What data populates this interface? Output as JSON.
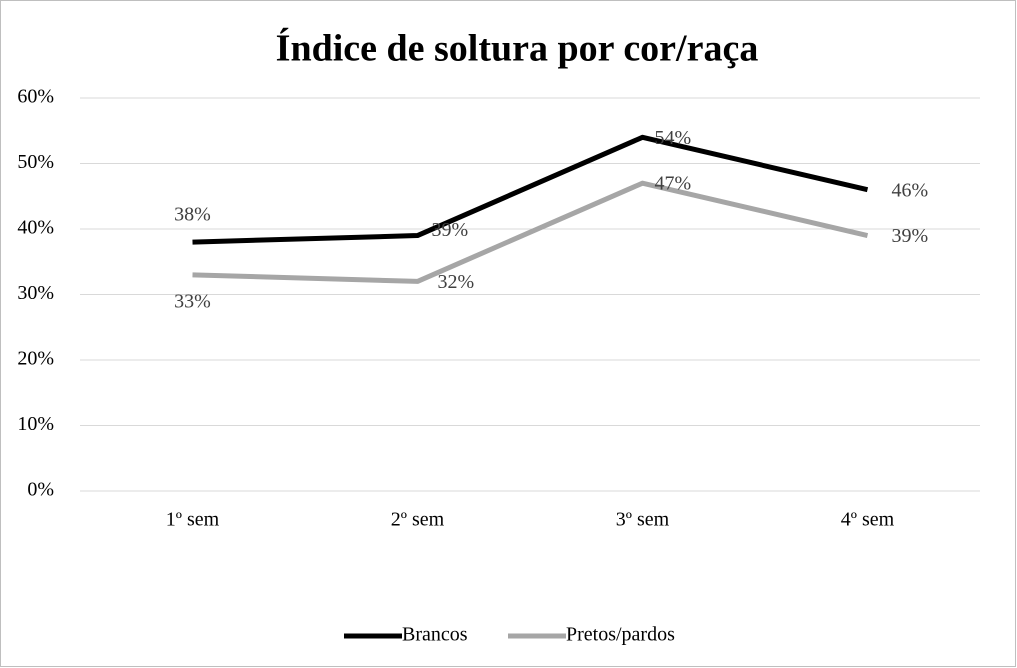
{
  "chart_data": {
    "type": "line",
    "title": "Índice de soltura por cor/raça",
    "categories": [
      "1º sem",
      "2º sem",
      "3º sem",
      "4º sem"
    ],
    "series": [
      {
        "name": "Brancos",
        "color": "#000000",
        "values": [
          38,
          39,
          54,
          46
        ],
        "value_labels": [
          "38%",
          "39%",
          "54%",
          "46%"
        ]
      },
      {
        "name": "Pretos/pardos",
        "color": "#a6a6a6",
        "values": [
          33,
          32,
          47,
          39
        ],
        "value_labels": [
          "33%",
          "32%",
          "47%",
          "39%"
        ]
      }
    ],
    "ylim": [
      0,
      60
    ],
    "yticks": [
      {
        "value": 0,
        "label": "0%"
      },
      {
        "value": 10,
        "label": "10%"
      },
      {
        "value": 20,
        "label": "20%"
      },
      {
        "value": 30,
        "label": "30%"
      },
      {
        "value": 40,
        "label": "40%"
      },
      {
        "value": 50,
        "label": "50%"
      },
      {
        "value": 60,
        "label": "60%"
      }
    ],
    "grid": true,
    "legend": "bottom"
  }
}
